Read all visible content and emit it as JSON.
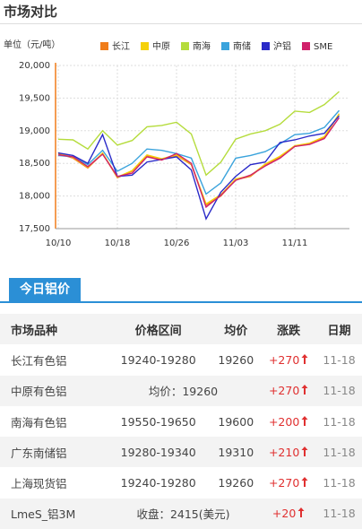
{
  "header": {
    "title": "市场对比"
  },
  "chart_data": {
    "type": "line",
    "unit_label": "单位（元/吨）",
    "categories": [
      "10/10",
      null,
      null,
      null,
      "10/18",
      null,
      null,
      null,
      "10/26",
      null,
      null,
      null,
      "11/03",
      null,
      null,
      null,
      "11/11",
      null,
      null,
      null
    ],
    "series": [
      {
        "name": "长江",
        "color": "#f07d1a",
        "values": [
          18650,
          18580,
          18430,
          18650,
          18280,
          18380,
          18620,
          18560,
          18620,
          18480,
          17860,
          18000,
          18250,
          18300,
          18480,
          18600,
          18760,
          18800,
          18900,
          19260
        ]
      },
      {
        "name": "中原",
        "color": "#f5d10a",
        "values": [
          18660,
          18590,
          18440,
          18660,
          18290,
          18390,
          18630,
          18570,
          18630,
          18490,
          17880,
          18020,
          18260,
          18310,
          18490,
          18610,
          18770,
          18810,
          18910,
          19260
        ]
      },
      {
        "name": "南海",
        "color": "#b5dc3c",
        "values": [
          18870,
          18860,
          18720,
          19000,
          18780,
          18850,
          19060,
          19080,
          19130,
          18950,
          18320,
          18520,
          18870,
          18950,
          19000,
          19100,
          19300,
          19280,
          19400,
          19600
        ]
      },
      {
        "name": "南储",
        "color": "#3aa3dc",
        "values": [
          18620,
          18600,
          18480,
          18700,
          18380,
          18500,
          18720,
          18700,
          18650,
          18580,
          18030,
          18200,
          18580,
          18620,
          18680,
          18800,
          18940,
          18960,
          19050,
          19310
        ]
      },
      {
        "name": "沪铝",
        "color": "#2a2ac8",
        "values": [
          18660,
          18620,
          18500,
          18940,
          18300,
          18320,
          18520,
          18560,
          18600,
          18400,
          17650,
          18060,
          18300,
          18480,
          18520,
          18820,
          18860,
          18920,
          18960,
          19230
        ]
      },
      {
        "name": "SME",
        "color": "#d0206a",
        "values": [
          18630,
          18600,
          18450,
          18640,
          18300,
          18350,
          18600,
          18550,
          18650,
          18500,
          17830,
          18010,
          18240,
          18320,
          18460,
          18580,
          18760,
          18790,
          18880,
          19200
        ]
      }
    ],
    "ylim": [
      17500,
      20000
    ],
    "yticks": [
      {
        "value": 17500,
        "label": "17,500"
      },
      {
        "value": 18000,
        "label": "18,000"
      },
      {
        "value": 18500,
        "label": "18,500"
      },
      {
        "value": 19000,
        "label": "19,000"
      },
      {
        "value": 19500,
        "label": "19,500"
      },
      {
        "value": 20000,
        "label": "20,000"
      }
    ],
    "grid": true
  },
  "tab": {
    "title": "今日铝价"
  },
  "table": {
    "columns": [
      "市场品种",
      "价格区间",
      "均价",
      "涨跌",
      "日期"
    ],
    "rows": [
      {
        "name": "长江有色铝",
        "range": "19240-19280",
        "avg": "19260",
        "change": "+270",
        "date": "11-18"
      },
      {
        "name": "中原有色铝",
        "range": "均价：19260",
        "change": "+270",
        "date": "11-18"
      },
      {
        "name": "南海有色铝",
        "range": "19550-19650",
        "avg": "19600",
        "change": "+200",
        "date": "11-18"
      },
      {
        "name": "广东南储铝",
        "range": "19280-19340",
        "avg": "19310",
        "change": "+210",
        "date": "11-18"
      },
      {
        "name": "上海现货铝",
        "range": "19240-19280",
        "avg": "19260",
        "change": "+270",
        "date": "11-18"
      },
      {
        "name": "LmeS_铝3M",
        "range": "收盘：2415(美元)",
        "change": "+20",
        "date": "11-18"
      }
    ]
  }
}
